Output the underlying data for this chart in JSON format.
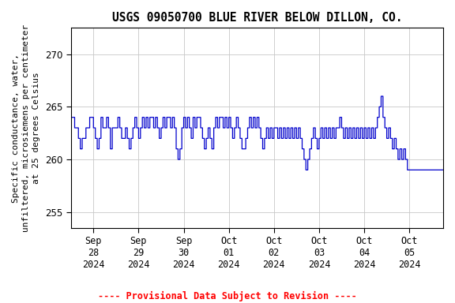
{
  "title": "USGS 09050700 BLUE RIVER BELOW DILLON, CO.",
  "ylabel": "Specific conductance, water,\nunfiltered, microsiemens per centimeter\nat 25 degrees Celsius",
  "provisional_text": "---- Provisional Data Subject to Revision ----",
  "ylim": [
    253.5,
    272.5
  ],
  "yticks": [
    255,
    260,
    265,
    270
  ],
  "line_color": "#0000cc",
  "background_color": "#ffffff",
  "plot_bg_color": "#ffffff",
  "grid_color": "#c8c8c8",
  "provisional_color": "#ff0000",
  "title_fontsize": 10.5,
  "ylabel_fontsize": 8,
  "tick_fontsize": 8.5,
  "font_family": "monospace",
  "xtick_labels": [
    "Sep\n28\n2024",
    "Sep\n29\n2024",
    "Sep\n30\n2024",
    "Oct\n01\n2024",
    "Oct\n02\n2024",
    "Oct\n03\n2024",
    "Oct\n04\n2024",
    "Oct\n05\n2024"
  ]
}
